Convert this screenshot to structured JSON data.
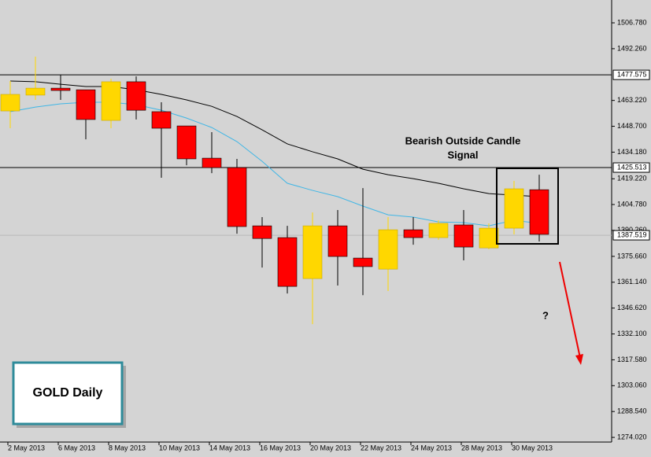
{
  "chart_data": {
    "type": "candlestick",
    "title": "GOLD Daily",
    "annotations": [
      "Bearish Outside Candle",
      "Signal",
      "?"
    ],
    "categories": [
      "2 May 2013",
      null,
      "6 May 2013",
      null,
      "8 May 2013",
      null,
      "10 May 2013",
      null,
      "14 May 2013",
      null,
      "16 May 2013",
      null,
      "20 May 2013",
      null,
      "22 May 2013",
      null,
      "24 May 2013",
      null,
      "28 May 2013",
      null,
      "30 May 2013",
      null
    ],
    "open": [
      1457.3,
      1466.2,
      1470.1,
      1469.2,
      1452.0,
      1473.7,
      1456.9,
      1448.9,
      1430.8,
      1425.5,
      1392.8,
      1386.2,
      1363.2,
      1392.8,
      1374.7,
      1368.5,
      1390.6,
      1386.2,
      1393.3,
      1380.4,
      1391.5,
      1413.1
    ],
    "high": [
      1474.1,
      1487.8,
      1477.6,
      1469.2,
      1475.4,
      1476.7,
      1462.2,
      1448.9,
      1445.4,
      1430.4,
      1397.7,
      1392.8,
      1400.3,
      1401.7,
      1414.0,
      1397.7,
      1397.7,
      1395.9,
      1401.7,
      1394.2,
      1418.0,
      1421.5
    ],
    "low": [
      1447.6,
      1463.5,
      1463.5,
      1441.4,
      1447.6,
      1452.5,
      1419.8,
      1426.8,
      1422.4,
      1388.4,
      1369.4,
      1354.8,
      1337.6,
      1359.3,
      1353.9,
      1356.2,
      1382.2,
      1384.9,
      1373.4,
      1379.6,
      1388.0,
      1384.0
    ],
    "close": [
      1466.6,
      1470.1,
      1468.8,
      1452.5,
      1473.7,
      1457.7,
      1447.6,
      1430.4,
      1425.5,
      1392.4,
      1385.7,
      1358.8,
      1392.8,
      1375.6,
      1369.9,
      1390.6,
      1386.2,
      1394.2,
      1380.9,
      1391.5,
      1413.6,
      1388.0
    ],
    "up_color": "#ffd700",
    "down_color": "#ff0000",
    "lines": [
      {
        "color": "#000000",
        "values": [
          1474.1,
          1473.7,
          1472.3,
          1471.0,
          1471.0,
          1469.2,
          1466.6,
          1463.5,
          1459.9,
          1454.2,
          1446.7,
          1438.8,
          1434.4,
          1430.4,
          1424.6,
          1421.5,
          1419.3,
          1416.7,
          1413.6,
          1410.9,
          1410.0,
          1409.2
        ]
      },
      {
        "color": "#3fb6e6",
        "values": [
          1456.9,
          1459.5,
          1461.3,
          1462.2,
          1462.2,
          1460.8,
          1457.7,
          1453.3,
          1448.0,
          1440.1,
          1429.0,
          1416.7,
          1412.7,
          1409.2,
          1403.9,
          1399.0,
          1397.7,
          1395.0,
          1394.6,
          1392.8,
          1395.9,
          1394.2
        ]
      }
    ],
    "levels": [
      {
        "value": 1477.575,
        "label": "1477.575",
        "color": "#000000"
      },
      {
        "value": 1425.513,
        "label": "1425.513",
        "color": "#000000"
      },
      {
        "value": 1387.519,
        "label": "1387.519",
        "color": "#b8b8b8"
      }
    ],
    "ylim": [
      1271.4,
      1519.6
    ],
    "yticks": [
      {
        "value": 1506.78,
        "label": "1506.780"
      },
      {
        "value": 1492.26,
        "label": "1492.260"
      },
      {
        "value": 1463.22,
        "label": "1463.220"
      },
      {
        "value": 1448.7,
        "label": "1448.700"
      },
      {
        "value": 1434.18,
        "label": "1434.180"
      },
      {
        "value": 1419.22,
        "label": "1419.220"
      },
      {
        "value": 1404.78,
        "label": "1404.780"
      },
      {
        "value": 1390.26,
        "label": "1390.260"
      },
      {
        "value": 1375.66,
        "label": "1375.660"
      },
      {
        "value": 1361.14,
        "label": "1361.140"
      },
      {
        "value": 1346.62,
        "label": "1346.620"
      },
      {
        "value": 1332.1,
        "label": "1332.100"
      },
      {
        "value": 1317.58,
        "label": "1317.580"
      },
      {
        "value": 1303.06,
        "label": "1303.060"
      },
      {
        "value": 1288.54,
        "label": "1288.540"
      },
      {
        "value": 1274.02,
        "label": "1274.020"
      }
    ]
  }
}
